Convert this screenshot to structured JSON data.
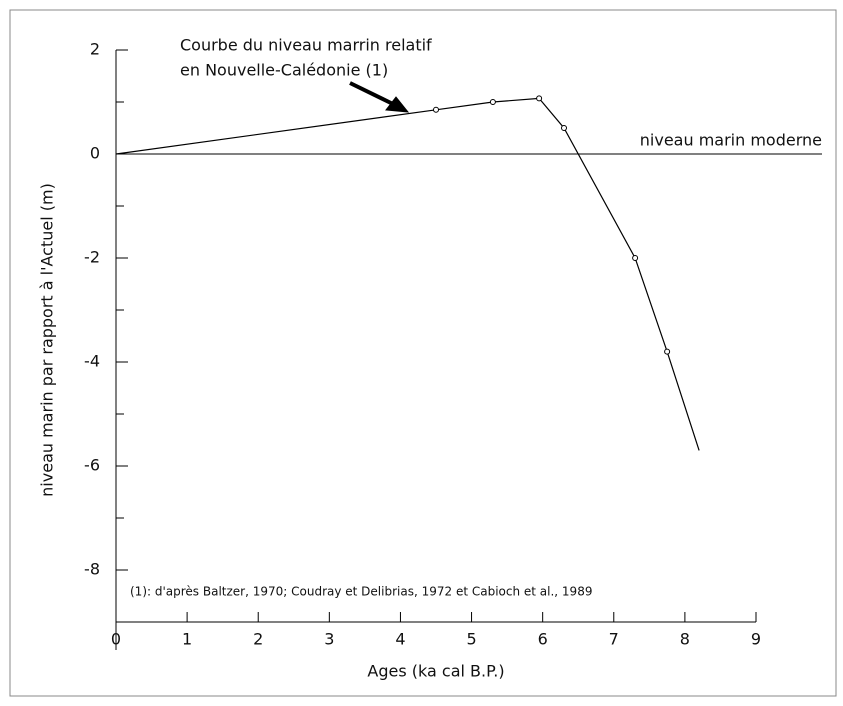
{
  "chart_data": {
    "type": "line",
    "xlabel": "Ages (ka cal B.P.)",
    "ylabel": "niveau marin par rapport à l'Actuel (m)",
    "annotations": [
      "Courbe du niveau marrin relatif",
      "en Nouvelle-Calédonie (1)"
    ],
    "reference_line": {
      "value": 0,
      "label": "niveau marin moderne"
    },
    "footnote": "(1): d'après Baltzer, 1970; Coudray et Delibrias, 1972 et Cabioch et al., 1989",
    "x": [
      0,
      4.5,
      5.3,
      5.95,
      6.3,
      7.3,
      7.75,
      8.2
    ],
    "series": [
      {
        "color": "#000000",
        "values": [
          0,
          0.85,
          1.0,
          1.07,
          0.5,
          -2.0,
          -3.8,
          -5.7
        ],
        "markers": [
          false,
          true,
          true,
          true,
          true,
          true,
          true,
          false
        ]
      }
    ],
    "xlim": [
      0,
      9
    ],
    "xticks": [
      0,
      1,
      2,
      3,
      4,
      5,
      6,
      7,
      8,
      9
    ],
    "ylim": [
      -9,
      2
    ],
    "yticks": [
      2,
      0,
      -2,
      -4,
      -6,
      -8
    ],
    "yticks_minor": [
      1,
      -1,
      -3,
      -5,
      -7,
      -9
    ]
  }
}
